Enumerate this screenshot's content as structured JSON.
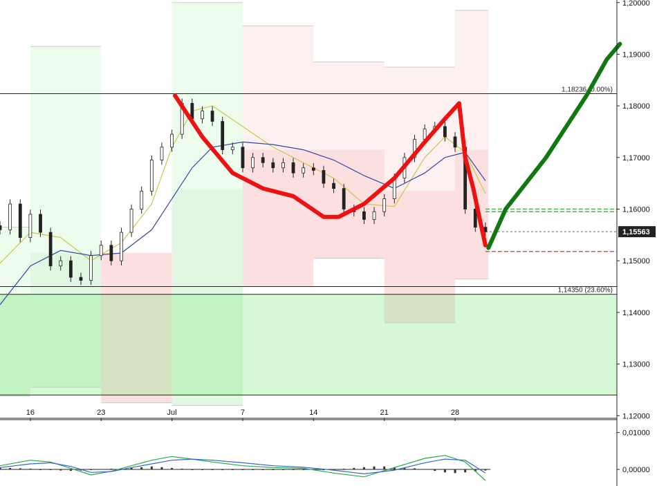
{
  "chart_data": {
    "type": "line",
    "instrument_chart": "candlestick with moving averages, zones and oscillator",
    "price_axis": {
      "ylim": [
        1.1195,
        1.2005
      ],
      "ticks": [
        "1,20000",
        "1,19000",
        "1,18000",
        "1,17000",
        "1,16000",
        "1,15000",
        "1,14000",
        "1,13000",
        "1,12000"
      ],
      "tick_values": [
        1.2,
        1.19,
        1.18,
        1.17,
        1.16,
        1.15,
        1.14,
        1.13,
        1.12
      ],
      "current_price_label": "1,15563",
      "current_price": 1.15563
    },
    "date_axis": {
      "labels": [
        "16",
        "23",
        "Jul",
        "7",
        "14",
        "21",
        "28"
      ],
      "label_bar_index": [
        0,
        7,
        14,
        21,
        28,
        35,
        42
      ],
      "bars_range": [
        -3,
        58
      ]
    },
    "fib_levels": [
      {
        "value": 1.18236,
        "label": "1,18236 (0.00%)"
      },
      {
        "value": 1.1435,
        "label": "1,14350 (23.60%)"
      },
      {
        "value": 1.145,
        "label": ""
      }
    ],
    "lower_boundary": 1.124,
    "dashed_levels": [
      {
        "value": 1.1595,
        "color": "#55aa55"
      },
      {
        "value": 1.16,
        "color": "#55aa55"
      },
      {
        "value": 1.1518,
        "color": "#e05050"
      }
    ],
    "zones": [
      {
        "x0": -3,
        "x1": 0,
        "top": 1.1565,
        "bottom": 1.1238,
        "mid": 1.1435,
        "color": "green"
      },
      {
        "x0": 0,
        "x1": 7,
        "top": 1.1915,
        "bottom": 1.1255,
        "mid": 1.1515,
        "color": "green"
      },
      {
        "x0": 7,
        "x1": 14,
        "top": 1.1435,
        "bottom": 1.1225,
        "mid": 1.1515,
        "color": "red"
      },
      {
        "x0": 14,
        "x1": 21,
        "top": 1.2,
        "bottom": 1.122,
        "mid": 1.1638,
        "color": "green"
      },
      {
        "x0": 21,
        "x1": 28,
        "top": 1.1955,
        "bottom": 1.145,
        "mid": 1.1715,
        "color": "red"
      },
      {
        "x0": 28,
        "x1": 35,
        "top": 1.1885,
        "bottom": 1.1505,
        "mid": 1.1715,
        "color": "red"
      },
      {
        "x0": 35,
        "x1": 42,
        "top": 1.1875,
        "bottom": 1.138,
        "mid": 1.1635,
        "color": "red"
      },
      {
        "x0": 42,
        "x1": 45.3,
        "top": 1.1985,
        "bottom": 1.1465,
        "mid": 1.1715,
        "color": "red"
      }
    ],
    "candles_daily_close": [
      {
        "day": -3,
        "close": 1.156
      },
      {
        "day": -2,
        "close": 1.161
      },
      {
        "day": -1,
        "close": 1.1545
      },
      {
        "day": 0,
        "close": 1.159
      },
      {
        "day": 1,
        "close": 1.1555
      },
      {
        "day": 2,
        "close": 1.149
      },
      {
        "day": 3,
        "close": 1.15
      },
      {
        "day": 4,
        "close": 1.1468
      },
      {
        "day": 5,
        "close": 1.1462
      },
      {
        "day": 6,
        "close": 1.151
      },
      {
        "day": 7,
        "close": 1.153
      },
      {
        "day": 8,
        "close": 1.15
      },
      {
        "day": 9,
        "close": 1.1555
      },
      {
        "day": 10,
        "close": 1.16
      },
      {
        "day": 11,
        "close": 1.1635
      },
      {
        "day": 12,
        "close": 1.1695
      },
      {
        "day": 13,
        "close": 1.172
      },
      {
        "day": 14,
        "close": 1.1745
      },
      {
        "day": 15,
        "close": 1.1805
      },
      {
        "day": 16,
        "close": 1.1775
      },
      {
        "day": 17,
        "close": 1.179
      },
      {
        "day": 18,
        "close": 1.177
      },
      {
        "day": 19,
        "close": 1.1715
      },
      {
        "day": 20,
        "close": 1.172
      },
      {
        "day": 21,
        "close": 1.168
      },
      {
        "day": 22,
        "close": 1.17
      },
      {
        "day": 23,
        "close": 1.169
      },
      {
        "day": 24,
        "close": 1.168
      },
      {
        "day": 25,
        "close": 1.169
      },
      {
        "day": 26,
        "close": 1.167
      },
      {
        "day": 27,
        "close": 1.168
      },
      {
        "day": 28,
        "close": 1.1675
      },
      {
        "day": 29,
        "close": 1.165
      },
      {
        "day": 30,
        "close": 1.164
      },
      {
        "day": 31,
        "close": 1.16
      },
      {
        "day": 32,
        "close": 1.1595
      },
      {
        "day": 33,
        "close": 1.158
      },
      {
        "day": 34,
        "close": 1.1595
      },
      {
        "day": 35,
        "close": 1.162
      },
      {
        "day": 36,
        "close": 1.166
      },
      {
        "day": 37,
        "close": 1.17
      },
      {
        "day": 38,
        "close": 1.1735
      },
      {
        "day": 39,
        "close": 1.1755
      },
      {
        "day": 40,
        "close": 1.176
      },
      {
        "day": 41,
        "close": 1.174
      },
      {
        "day": 42,
        "close": 1.172
      },
      {
        "day": 43,
        "close": 1.16
      },
      {
        "day": 44,
        "close": 1.1565
      },
      {
        "day": 45,
        "close": 1.1556
      }
    ],
    "series": [
      {
        "color": "#c8c84a",
        "points": [
          [
            -3,
            1.1495
          ],
          [
            0,
            1.1555
          ],
          [
            3,
            1.1545
          ],
          [
            6,
            1.15
          ],
          [
            9,
            1.1535
          ],
          [
            12,
            1.161
          ],
          [
            14,
            1.172
          ],
          [
            16,
            1.179
          ],
          [
            18,
            1.18
          ],
          [
            21,
            1.176
          ],
          [
            24,
            1.172
          ],
          [
            27,
            1.169
          ],
          [
            30,
            1.166
          ],
          [
            33,
            1.161
          ],
          [
            36,
            1.1605
          ],
          [
            39,
            1.17
          ],
          [
            41,
            1.174
          ],
          [
            43,
            1.171
          ],
          [
            45,
            1.163
          ]
        ]
      },
      {
        "color": "#3344aa",
        "points": [
          [
            -3,
            1.1415
          ],
          [
            0,
            1.149
          ],
          [
            3,
            1.152
          ],
          [
            6,
            1.151
          ],
          [
            9,
            1.1515
          ],
          [
            12,
            1.156
          ],
          [
            14,
            1.162
          ],
          [
            16,
            1.168
          ],
          [
            18,
            1.172
          ],
          [
            21,
            1.173
          ],
          [
            24,
            1.1725
          ],
          [
            27,
            1.1715
          ],
          [
            30,
            1.1695
          ],
          [
            33,
            1.1665
          ],
          [
            36,
            1.164
          ],
          [
            39,
            1.167
          ],
          [
            41,
            1.17
          ],
          [
            43,
            1.171
          ],
          [
            45,
            1.1655
          ]
        ]
      }
    ],
    "annotations": [
      {
        "color": "#ee1111",
        "points": [
          [
            14.3,
            1.182
          ],
          [
            17,
            1.174
          ],
          [
            20,
            1.167
          ],
          [
            23,
            1.164
          ],
          [
            26,
            1.1625
          ],
          [
            29,
            1.1585
          ],
          [
            30.5,
            1.1585
          ],
          [
            33,
            1.161
          ],
          [
            36,
            1.166
          ],
          [
            39,
            1.173
          ],
          [
            41,
            1.1775
          ],
          [
            42.4,
            1.1805
          ],
          [
            43,
            1.17
          ],
          [
            43.8,
            1.164
          ],
          [
            44.5,
            1.1575
          ],
          [
            45,
            1.153
          ]
        ]
      },
      {
        "color": "#117711",
        "points": [
          [
            45.3,
            1.1525
          ],
          [
            47,
            1.16
          ],
          [
            49,
            1.165
          ],
          [
            51,
            1.17
          ],
          [
            53,
            1.176
          ],
          [
            55,
            1.182
          ],
          [
            57,
            1.189
          ],
          [
            58.3,
            1.192
          ]
        ]
      }
    ],
    "oscillator": {
      "ylim": [
        -0.0045,
        0.0135
      ],
      "ticks": [
        "0,01000",
        "0,00000"
      ],
      "tick_values": [
        0.01,
        0.0
      ],
      "histogram": [
        0.0005,
        0.0004,
        0.0003,
        0.0002,
        0.0,
        -0.0002,
        -0.0003,
        -0.0004,
        -0.0003,
        -0.0001,
        0.0001,
        0.0002,
        0.0003,
        0.0004,
        0.0006,
        0.0008,
        0.0006,
        0.0004,
        0.0002,
        0.0,
        -0.0001,
        -0.0001,
        -0.0002,
        -0.0002,
        -0.0001,
        -0.0001,
        -0.0001,
        0.0,
        0.0,
        0.0,
        -0.0001,
        -0.0002,
        -0.0002,
        0.0,
        0.0002,
        0.0004,
        0.0006,
        0.0008,
        0.0008,
        0.0006,
        0.0004,
        0.0003,
        0.0001,
        -0.0004,
        -0.0008,
        -0.001,
        -0.0008,
        -0.0005,
        -0.0003
      ],
      "lines": [
        {
          "color": "#22aa44",
          "points": [
            [
              -3,
              0.001
            ],
            [
              0,
              0.0025
            ],
            [
              2,
              0.002
            ],
            [
              4,
              0.0003
            ],
            [
              6,
              -0.0015
            ],
            [
              8,
              -0.0005
            ],
            [
              10,
              0.001
            ],
            [
              12,
              0.0025
            ],
            [
              14,
              0.0035
            ],
            [
              16,
              0.0028
            ],
            [
              18,
              0.002
            ],
            [
              21,
              0.001
            ],
            [
              24,
              0.0005
            ],
            [
              27,
              0.0003
            ],
            [
              30,
              -0.001
            ],
            [
              33,
              -0.002
            ],
            [
              36,
              0.0005
            ],
            [
              39,
              0.003
            ],
            [
              41,
              0.0038
            ],
            [
              43,
              0.002
            ],
            [
              45,
              -0.003
            ]
          ]
        },
        {
          "color": "#3366cc",
          "points": [
            [
              -3,
              0.0005
            ],
            [
              0,
              0.0015
            ],
            [
              2,
              0.0018
            ],
            [
              4,
              0.0008
            ],
            [
              6,
              -0.0008
            ],
            [
              8,
              -0.0006
            ],
            [
              10,
              0.0005
            ],
            [
              12,
              0.0015
            ],
            [
              14,
              0.0025
            ],
            [
              16,
              0.0028
            ],
            [
              18,
              0.0025
            ],
            [
              21,
              0.0018
            ],
            [
              24,
              0.001
            ],
            [
              27,
              0.0006
            ],
            [
              30,
              -0.0002
            ],
            [
              33,
              -0.0012
            ],
            [
              36,
              -0.0002
            ],
            [
              39,
              0.0018
            ],
            [
              41,
              0.0028
            ],
            [
              43,
              0.0025
            ],
            [
              45,
              -0.001
            ]
          ]
        }
      ]
    }
  }
}
